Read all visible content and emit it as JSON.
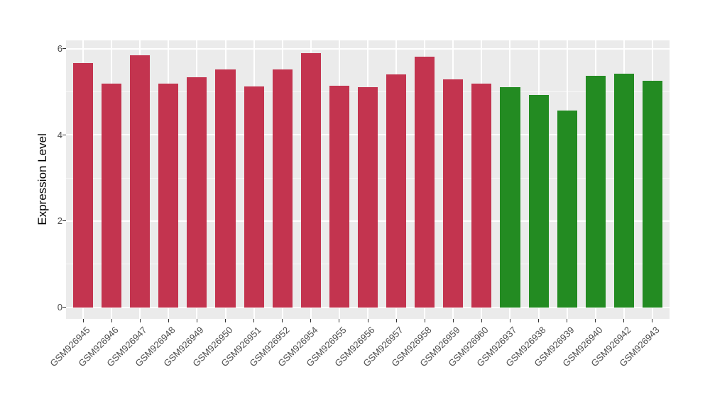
{
  "chart_data": {
    "type": "bar",
    "title": "",
    "xlabel": "",
    "ylabel": "Expression Level",
    "ylim": [
      -0.27,
      6.19
    ],
    "yticks_major": [
      0,
      2,
      4,
      6
    ],
    "yticks_minor": [
      1,
      3,
      5
    ],
    "grid": "on",
    "legend": "none",
    "panel_bg": "#EBEBEB",
    "grid_color": "#FFFFFF",
    "categories": [
      "GSM926945",
      "GSM926946",
      "GSM926947",
      "GSM926948",
      "GSM926949",
      "GSM926950",
      "GSM926951",
      "GSM926952",
      "GSM926954",
      "GSM926955",
      "GSM926956",
      "GSM926957",
      "GSM926958",
      "GSM926959",
      "GSM926960",
      "GSM926937",
      "GSM926938",
      "GSM926939",
      "GSM926940",
      "GSM926942",
      "GSM926943"
    ],
    "values": [
      5.66,
      5.19,
      5.85,
      5.18,
      5.33,
      5.51,
      5.12,
      5.52,
      5.9,
      5.14,
      5.1,
      5.4,
      5.81,
      5.28,
      5.18,
      5.1,
      4.93,
      4.56,
      5.37,
      5.42,
      5.25
    ],
    "bar_groups": [
      "red",
      "red",
      "red",
      "red",
      "red",
      "red",
      "red",
      "red",
      "red",
      "red",
      "red",
      "red",
      "red",
      "red",
      "red",
      "green",
      "green",
      "green",
      "green",
      "green",
      "green"
    ],
    "group_colors": {
      "red": "#C3344F",
      "green": "#238B22"
    }
  }
}
